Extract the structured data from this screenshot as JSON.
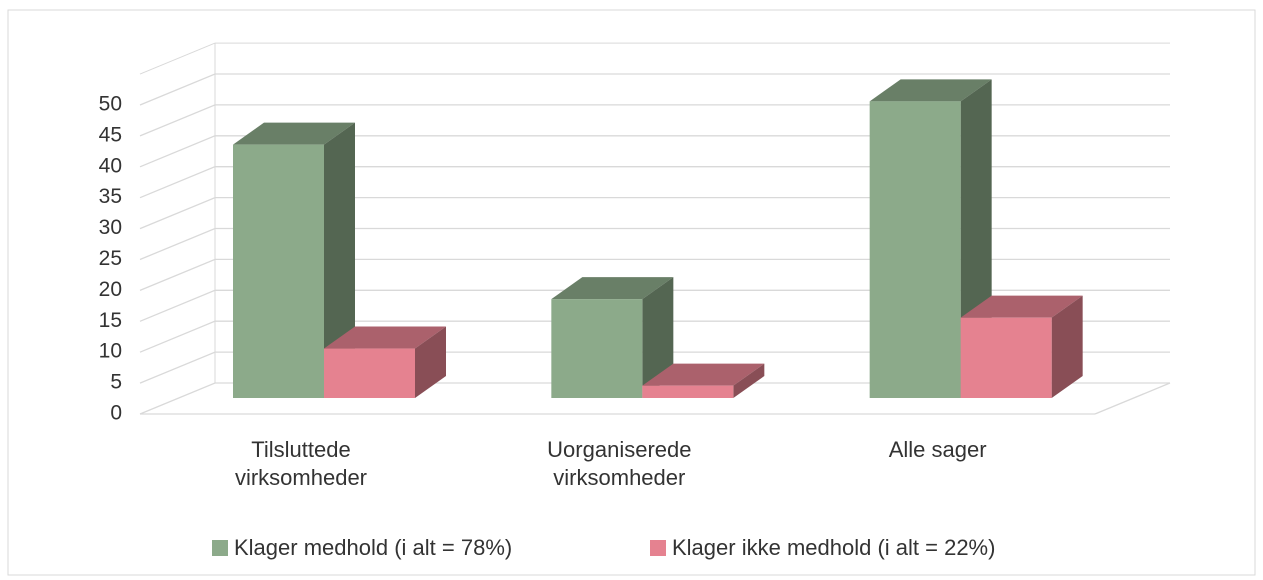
{
  "chart_data": {
    "type": "bar3d",
    "categories": [
      "Tilsluttede virksomheder",
      "Uorganiserede virksomheder",
      "Alle sager"
    ],
    "series": [
      {
        "name": "Klager medhold (i alt = 78%)",
        "color": "#8caa8a",
        "values": [
          41,
          16,
          48
        ]
      },
      {
        "name": "Klager ikke medhold (i alt = 22%)",
        "color": "#e58290",
        "values": [
          8,
          2,
          13
        ]
      }
    ],
    "ylim": [
      0,
      55
    ],
    "yticks": [
      0,
      5,
      10,
      15,
      20,
      25,
      30,
      35,
      40,
      45,
      50
    ],
    "grid": true
  }
}
